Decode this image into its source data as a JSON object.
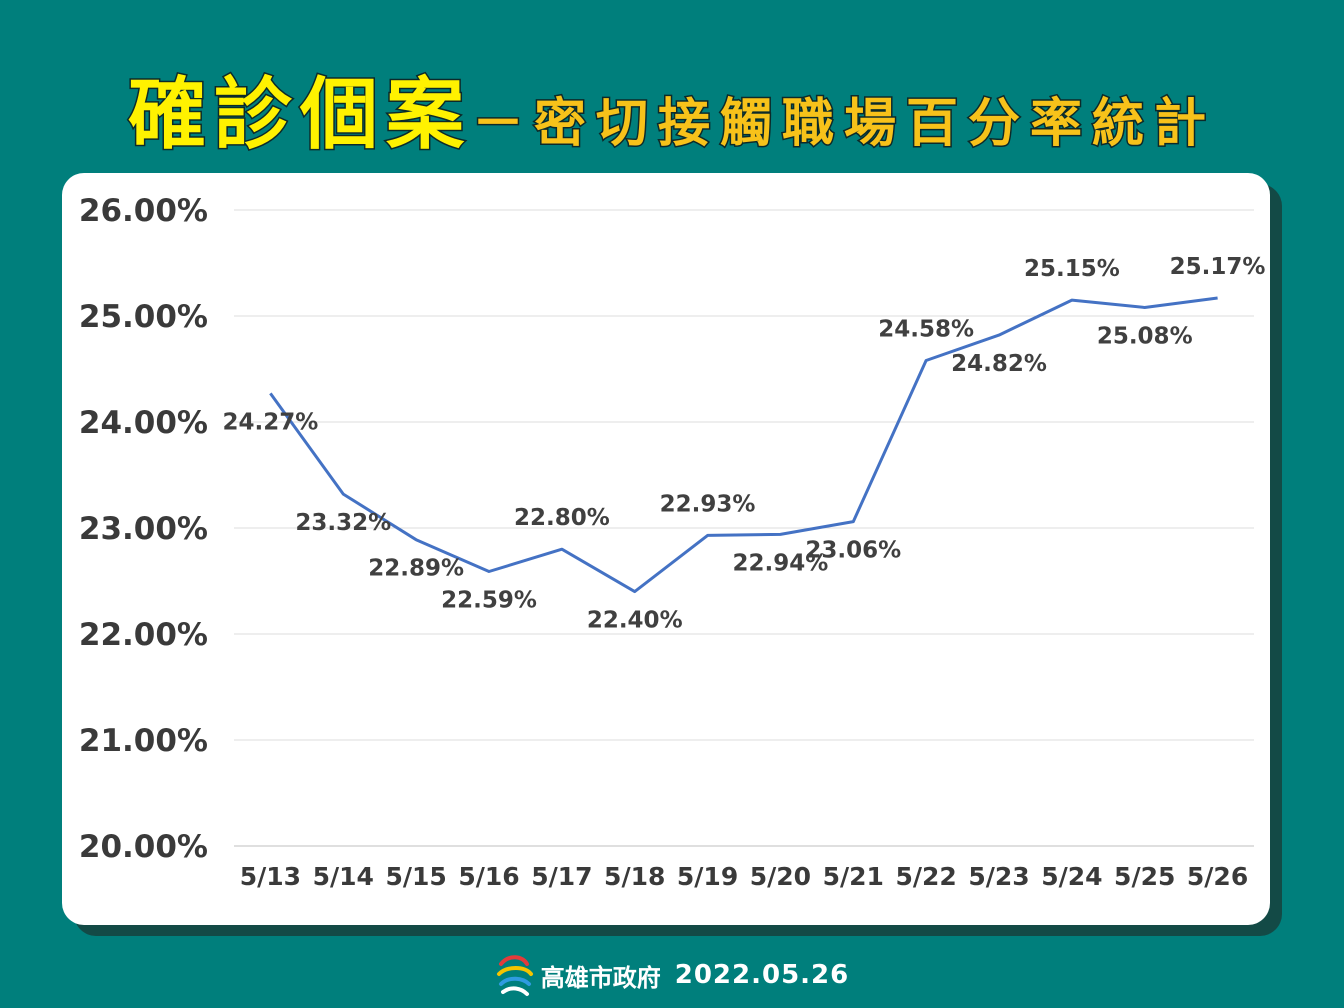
{
  "header": {
    "title_main": "確診個案",
    "title_sub": "－密切接觸職場百分率統計"
  },
  "footer": {
    "org": "高雄市政府",
    "date": "2022.05.26"
  },
  "colors": {
    "background": "#007f7c",
    "title_main": "#fff200",
    "title_sub": "#f7c21a",
    "line": "#4472c4",
    "panel": "#ffffff"
  },
  "chart_data": {
    "type": "line",
    "categories": [
      "5/13",
      "5/14",
      "5/15",
      "5/16",
      "5/17",
      "5/18",
      "5/19",
      "5/20",
      "5/21",
      "5/22",
      "5/23",
      "5/24",
      "5/25",
      "5/26"
    ],
    "series": [
      {
        "values": [
          24.27,
          23.32,
          22.89,
          22.59,
          22.8,
          22.4,
          22.93,
          22.94,
          23.06,
          24.58,
          24.82,
          25.15,
          25.08,
          25.17
        ]
      }
    ],
    "data_labels": [
      "24.27%",
      "23.32%",
      "22.89%",
      "22.59%",
      "22.80%",
      "22.40%",
      "22.93%",
      "22.94%",
      "23.06%",
      "24.58%",
      "24.82%",
      "25.15%",
      "25.08%",
      "25.17%"
    ],
    "y_ticks": [
      "20.00%",
      "21.00%",
      "22.00%",
      "23.00%",
      "24.00%",
      "25.00%",
      "26.00%"
    ],
    "ylim": [
      20,
      26
    ],
    "grid": true,
    "legend": "none"
  }
}
